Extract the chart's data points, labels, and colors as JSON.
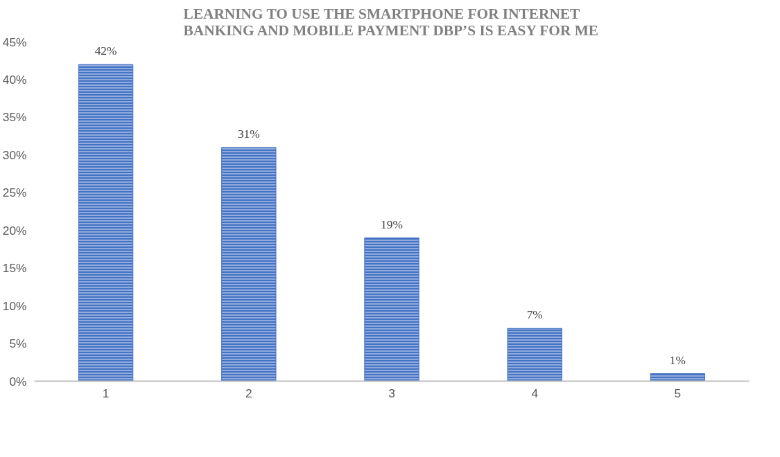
{
  "chart_data": {
    "type": "bar",
    "title": "LEARNING TO USE THE SMARTPHONE FOR INTERNET\nBANKING AND MOBILE PAYMENT DBP’S IS EASY FOR ME",
    "categories": [
      "1",
      "2",
      "3",
      "4",
      "5"
    ],
    "values": [
      42,
      31,
      19,
      7,
      1
    ],
    "color": "#4472c4",
    "value_labels": [
      "42%",
      "31%",
      "19%",
      "7%",
      "1%"
    ],
    "ylim": [
      0,
      45
    ],
    "yticks": [
      {
        "value": 0,
        "label": "0%"
      },
      {
        "value": 5,
        "label": "5%"
      },
      {
        "value": 10,
        "label": "10%"
      },
      {
        "value": 15,
        "label": "15%"
      },
      {
        "value": 20,
        "label": "20%"
      },
      {
        "value": 25,
        "label": "25%"
      },
      {
        "value": 30,
        "label": "30%"
      },
      {
        "value": 35,
        "label": "35%"
      },
      {
        "value": 40,
        "label": "40%"
      },
      {
        "value": 45,
        "label": "45%"
      }
    ],
    "grid": false
  }
}
